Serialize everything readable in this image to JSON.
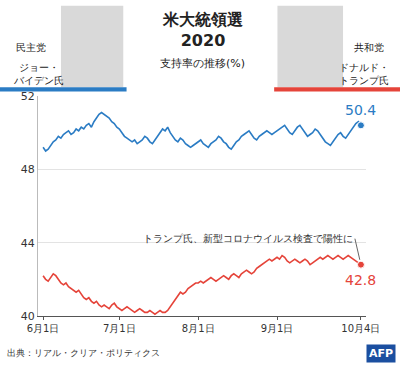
{
  "chart_data": {
    "type": "line",
    "title": "米大統領選\n2020",
    "subtitle": "支持率の推移(%)",
    "source": "出典：リアル・クリア・ポリティクス",
    "credit": "AFP",
    "grid": true,
    "categories": [
      "6月1日",
      null,
      null,
      null,
      null,
      null,
      null,
      null,
      null,
      null,
      null,
      null,
      null,
      null,
      null,
      null,
      null,
      null,
      null,
      null,
      null,
      null,
      null,
      null,
      null,
      null,
      null,
      null,
      null,
      null,
      "7月1日",
      null,
      null,
      null,
      null,
      null,
      null,
      null,
      null,
      null,
      null,
      null,
      null,
      null,
      null,
      null,
      null,
      null,
      null,
      null,
      null,
      null,
      null,
      null,
      null,
      null,
      null,
      null,
      null,
      null,
      null,
      "8月1日",
      null,
      null,
      null,
      null,
      null,
      null,
      null,
      null,
      null,
      null,
      null,
      null,
      null,
      null,
      null,
      null,
      null,
      null,
      null,
      null,
      null,
      null,
      null,
      null,
      null,
      null,
      null,
      null,
      null,
      null,
      "9月1日",
      null,
      null,
      null,
      null,
      null,
      null,
      null,
      null,
      null,
      null,
      null,
      null,
      null,
      null,
      null,
      null,
      null,
      null,
      null,
      null,
      null,
      null,
      null,
      null,
      null,
      null,
      null,
      null,
      null,
      null,
      null,
      null,
      "10月4日"
    ],
    "series": [
      {
        "name": "ジョー・\nバイデン氏",
        "party": "民主党",
        "color": "#2b7cc4",
        "values": [
          49.2,
          49.0,
          49.1,
          49.3,
          49.5,
          49.6,
          49.8,
          49.7,
          49.9,
          50.0,
          50.1,
          49.9,
          50.0,
          50.2,
          50.1,
          50.3,
          50.2,
          50.4,
          50.5,
          50.3,
          50.6,
          50.8,
          51.0,
          51.1,
          51.0,
          50.9,
          50.8,
          50.6,
          50.5,
          50.3,
          50.2,
          50.0,
          49.8,
          49.7,
          49.6,
          49.5,
          49.6,
          49.4,
          49.5,
          49.6,
          49.8,
          49.7,
          49.5,
          49.4,
          49.6,
          49.8,
          50.0,
          50.2,
          50.1,
          50.3,
          50.0,
          49.8,
          49.6,
          49.5,
          49.7,
          49.6,
          49.4,
          49.3,
          49.2,
          49.3,
          49.4,
          49.5,
          49.6,
          49.4,
          49.3,
          49.2,
          49.4,
          49.5,
          49.6,
          49.8,
          49.7,
          49.5,
          49.4,
          49.2,
          49.1,
          49.3,
          49.5,
          49.6,
          49.8,
          49.9,
          50.0,
          50.1,
          49.9,
          49.7,
          49.6,
          49.8,
          49.9,
          50.0,
          50.1,
          50.0,
          49.9,
          50.0,
          50.1,
          50.2,
          50.3,
          50.4,
          50.2,
          50.0,
          49.9,
          50.1,
          50.3,
          50.4,
          50.2,
          50.0,
          49.8,
          49.9,
          50.0,
          50.2,
          50.1,
          49.9,
          49.7,
          49.5,
          49.4,
          49.3,
          49.5,
          49.7,
          49.9,
          50.0,
          49.8,
          49.7,
          49.9,
          50.1,
          50.3,
          50.5,
          50.6,
          50.4
        ]
      },
      {
        "name": "ドナルド・\nトランプ氏",
        "party": "共和党",
        "color": "#e5443a",
        "values": [
          42.2,
          42.0,
          41.9,
          42.1,
          42.3,
          42.2,
          42.0,
          41.8,
          41.7,
          41.8,
          41.6,
          41.5,
          41.4,
          41.3,
          41.4,
          41.2,
          41.0,
          40.9,
          41.0,
          40.8,
          40.7,
          40.8,
          40.6,
          40.5,
          40.6,
          40.5,
          40.4,
          40.6,
          40.7,
          40.5,
          40.4,
          40.3,
          40.4,
          40.5,
          40.4,
          40.3,
          40.2,
          40.3,
          40.4,
          40.3,
          40.2,
          40.2,
          40.3,
          40.2,
          40.1,
          40.2,
          40.3,
          40.2,
          40.2,
          40.3,
          40.5,
          40.7,
          40.9,
          41.1,
          41.3,
          41.2,
          41.3,
          41.5,
          41.6,
          41.7,
          41.8,
          41.8,
          41.9,
          41.8,
          41.9,
          42.0,
          42.1,
          42.0,
          41.9,
          42.0,
          42.1,
          42.2,
          42.1,
          42.0,
          42.2,
          42.3,
          42.2,
          42.1,
          42.3,
          42.4,
          42.5,
          42.4,
          42.3,
          42.4,
          42.6,
          42.7,
          42.8,
          42.9,
          43.0,
          43.1,
          43.0,
          43.1,
          43.2,
          43.1,
          43.3,
          43.2,
          43.0,
          42.9,
          43.0,
          43.1,
          43.0,
          42.9,
          43.0,
          43.1,
          43.0,
          42.8,
          42.9,
          43.0,
          43.1,
          43.2,
          43.1,
          43.2,
          43.3,
          43.2,
          43.1,
          43.2,
          43.3,
          43.2,
          43.1,
          43.2,
          43.3,
          43.2,
          43.1,
          43.0,
          42.9,
          42.8
        ]
      }
    ],
    "ylim": [
      40,
      52
    ],
    "yticks": [
      40,
      44,
      48,
      52
    ],
    "annotations": [
      {
        "text": "50.4",
        "x": "10月4日",
        "y": 50.4
      },
      {
        "text": "42.8",
        "x": "10月4日",
        "y": 42.8
      },
      {
        "text": "トランプ氏、新型コロナウイルス検査で陽性に",
        "x": "10月4日",
        "y": 42.8
      }
    ]
  }
}
